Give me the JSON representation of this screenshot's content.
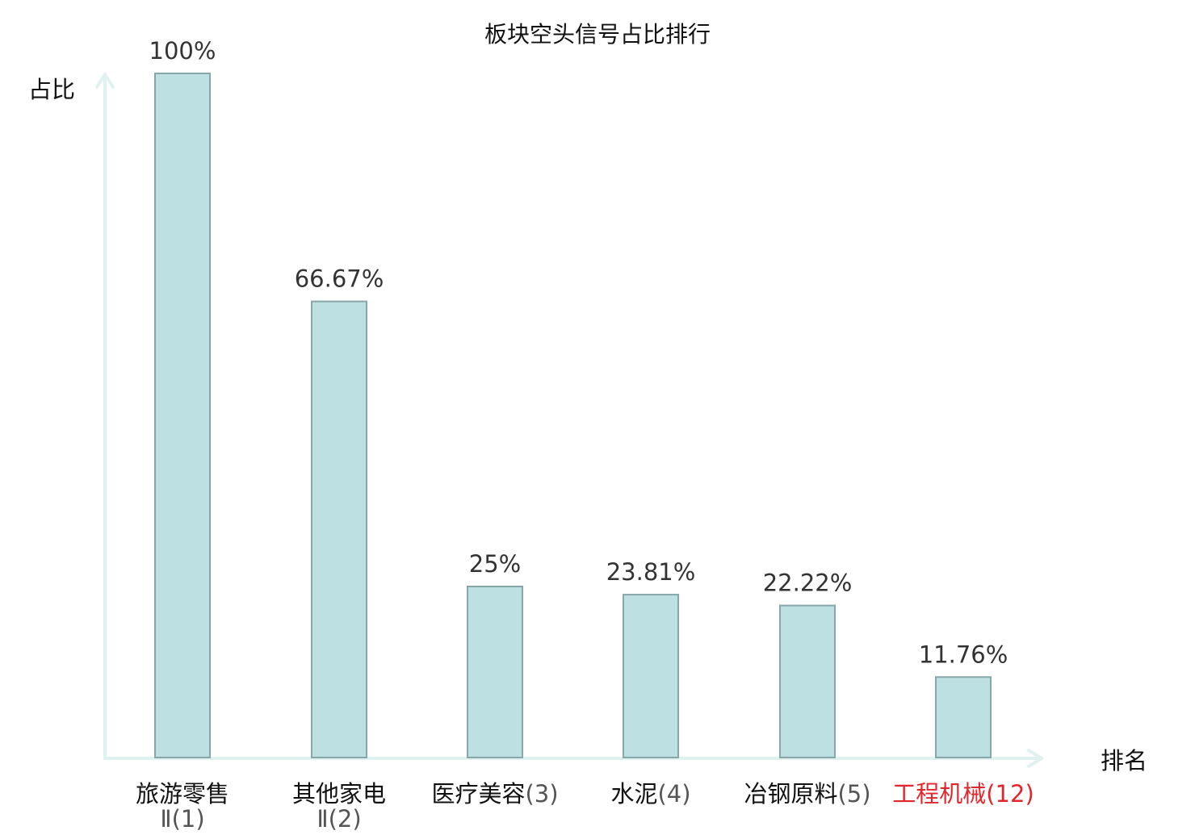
{
  "chart_data": {
    "type": "bar",
    "title": "板块空头信号占比排行",
    "ylabel": "占比",
    "xlabel": "排名",
    "ylim": [
      0,
      100
    ],
    "grid": false,
    "categories": [
      {
        "name": "旅游零售",
        "name2": "Ⅱ",
        "rank": "(1)",
        "highlight": false
      },
      {
        "name": "其他家电",
        "name2": "Ⅱ",
        "rank": "(2)",
        "highlight": false
      },
      {
        "name": "医疗美容",
        "name2": "",
        "rank": "(3)",
        "highlight": false
      },
      {
        "name": "水泥",
        "name2": "",
        "rank": "(4)",
        "highlight": false
      },
      {
        "name": "冶钢原料",
        "name2": "",
        "rank": "(5)",
        "highlight": false
      },
      {
        "name": "工程机械",
        "name2": "",
        "rank": "(12)",
        "highlight": true
      }
    ],
    "values": [
      100,
      66.67,
      25,
      23.81,
      22.22,
      11.76
    ],
    "value_labels": [
      "100%",
      "66.67%",
      "25%",
      "23.81%",
      "22.22%",
      "11.76%"
    ],
    "colors": {
      "bar_fill": "#bde0e3",
      "bar_stroke": "#86a6aa",
      "axis": "#e0f2f0",
      "label": "#111111",
      "rank": "#555555",
      "highlight": "#e3262c"
    }
  }
}
